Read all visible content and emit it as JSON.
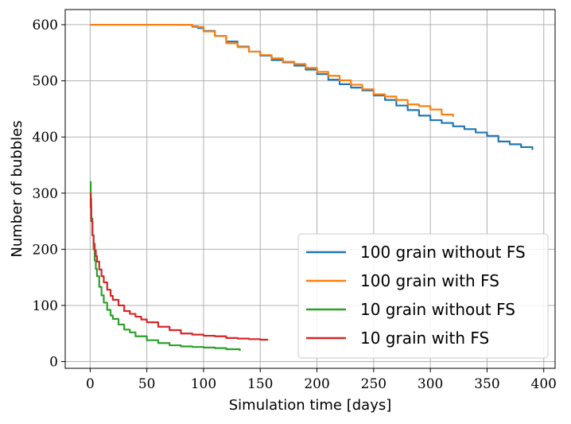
{
  "chart_data": {
    "type": "line",
    "title": "",
    "xlabel": "Simulation time [days]",
    "ylabel": "Number of bubbles",
    "xlim": [
      -22,
      410
    ],
    "ylim": [
      -12,
      627
    ],
    "xticks": [
      0,
      50,
      100,
      150,
      200,
      250,
      300,
      350,
      400
    ],
    "yticks": [
      0,
      100,
      200,
      300,
      400,
      500,
      600
    ],
    "grid": true,
    "legend_position": "lower-right",
    "series": [
      {
        "name": "100 grain without FS",
        "color": "#1f77b4",
        "x": [
          0,
          40,
          80,
          90,
          95,
          100,
          110,
          120,
          130,
          140,
          150,
          160,
          170,
          180,
          190,
          200,
          210,
          220,
          230,
          240,
          250,
          260,
          270,
          280,
          290,
          300,
          310,
          320,
          330,
          340,
          350,
          360,
          370,
          380,
          390
        ],
        "y": [
          600,
          600,
          600,
          597,
          594,
          589,
          580,
          570,
          561,
          552,
          545,
          537,
          533,
          527,
          520,
          512,
          502,
          494,
          488,
          483,
          474,
          466,
          456,
          448,
          438,
          430,
          425,
          419,
          414,
          408,
          402,
          392,
          387,
          382,
          377
        ]
      },
      {
        "name": "100 grain with FS",
        "color": "#ff7f0e",
        "x": [
          0,
          40,
          80,
          90,
          100,
          110,
          120,
          130,
          140,
          150,
          160,
          170,
          180,
          190,
          200,
          210,
          220,
          230,
          240,
          250,
          260,
          270,
          280,
          290,
          300,
          310,
          320
        ],
        "y": [
          600,
          600,
          600,
          596,
          588,
          580,
          567,
          560,
          552,
          546,
          540,
          534,
          530,
          523,
          516,
          509,
          501,
          493,
          485,
          476,
          472,
          466,
          458,
          455,
          449,
          440,
          436
        ]
      },
      {
        "name": "10 grain without FS",
        "color": "#2ca02c",
        "x": [
          0,
          0.5,
          1,
          2,
          3,
          4,
          5,
          6,
          8,
          10,
          12,
          15,
          18,
          20,
          25,
          30,
          35,
          40,
          50,
          60,
          70,
          80,
          90,
          100,
          110,
          120,
          132
        ],
        "y": [
          320,
          290,
          255,
          225,
          200,
          180,
          165,
          152,
          133,
          118,
          105,
          92,
          82,
          76,
          66,
          57,
          52,
          45,
          38,
          33,
          29,
          27,
          26,
          25,
          24,
          22,
          19
        ]
      },
      {
        "name": "10 grain with FS",
        "color": "#d62728",
        "x": [
          0,
          0.5,
          1,
          2,
          3,
          4,
          5,
          6,
          8,
          10,
          12,
          15,
          18,
          20,
          25,
          30,
          35,
          40,
          45,
          50,
          60,
          70,
          80,
          90,
          100,
          110,
          120,
          130,
          140,
          150,
          157
        ],
        "y": [
          300,
          275,
          250,
          225,
          210,
          198,
          188,
          178,
          164,
          152,
          141,
          128,
          117,
          110,
          100,
          90,
          85,
          80,
          75,
          70,
          62,
          56,
          50,
          48,
          46,
          45,
          42,
          41,
          40,
          39,
          39
        ]
      }
    ]
  }
}
